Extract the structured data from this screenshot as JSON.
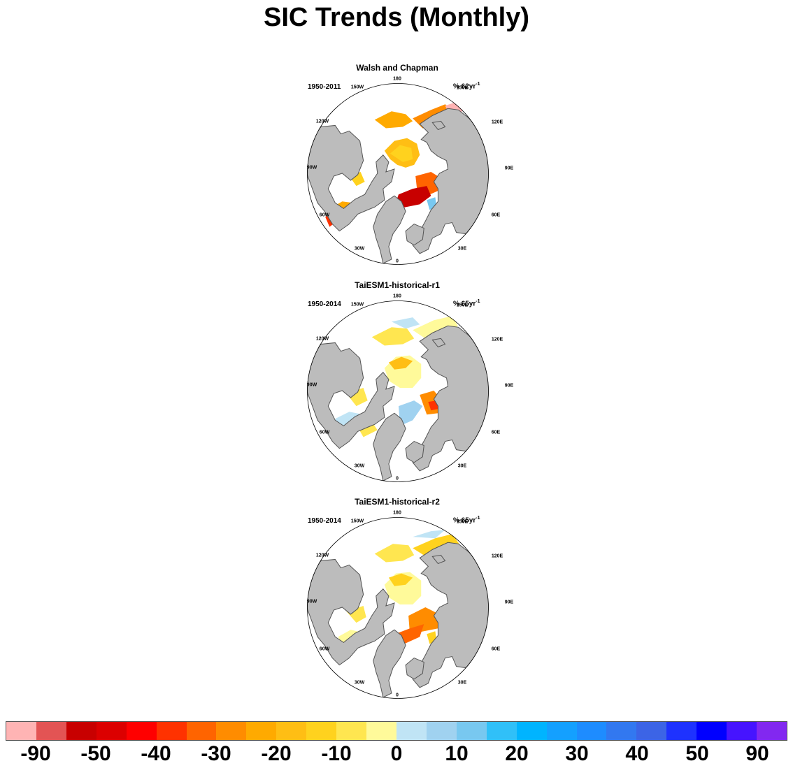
{
  "title": "SIC Trends (Monthly)",
  "lon_labels": {
    "l180": "180",
    "l150w": "150W",
    "l150e": "150E",
    "l120w": "120W",
    "l120e": "120E",
    "l90w": "90W",
    "l90e": "90E",
    "l60w": "60W",
    "l60e": "60E",
    "l30w": "30W",
    "l30e": "30E",
    "l0": "0"
  },
  "colors": {
    "land": "#bcbcbc",
    "coast": "#555555"
  },
  "panels": [
    {
      "title": "Walsh and Chapman",
      "period": "1950-2011",
      "units": "% 62yr",
      "units_exp": "-1"
    },
    {
      "title": "TaiESM1-historical-r1",
      "period": "1950-2014",
      "units": "% 65yr",
      "units_exp": "-1"
    },
    {
      "title": "TaiESM1-historical-r2",
      "period": "1950-2014",
      "units": "% 65yr",
      "units_exp": "-1"
    }
  ],
  "colorbar": {
    "colors": [
      "#ffb4b4",
      "#e35454",
      "#c80000",
      "#dc0000",
      "#ff0000",
      "#ff3200",
      "#ff6400",
      "#ff8c00",
      "#ffaa00",
      "#ffbe14",
      "#ffd21e",
      "#ffe650",
      "#fffa9a",
      "#c0e4f5",
      "#a0d2f0",
      "#78c8f0",
      "#30c0f8",
      "#00b4ff",
      "#14a0ff",
      "#1e8cff",
      "#3278f0",
      "#3c64e6",
      "#1e32ff",
      "#0000ff",
      "#4614ff",
      "#8228f0"
    ],
    "labels": [
      "-90",
      "-50",
      "-40",
      "-30",
      "-20",
      "-10",
      "0",
      "10",
      "20",
      "30",
      "40",
      "50",
      "90"
    ]
  }
}
